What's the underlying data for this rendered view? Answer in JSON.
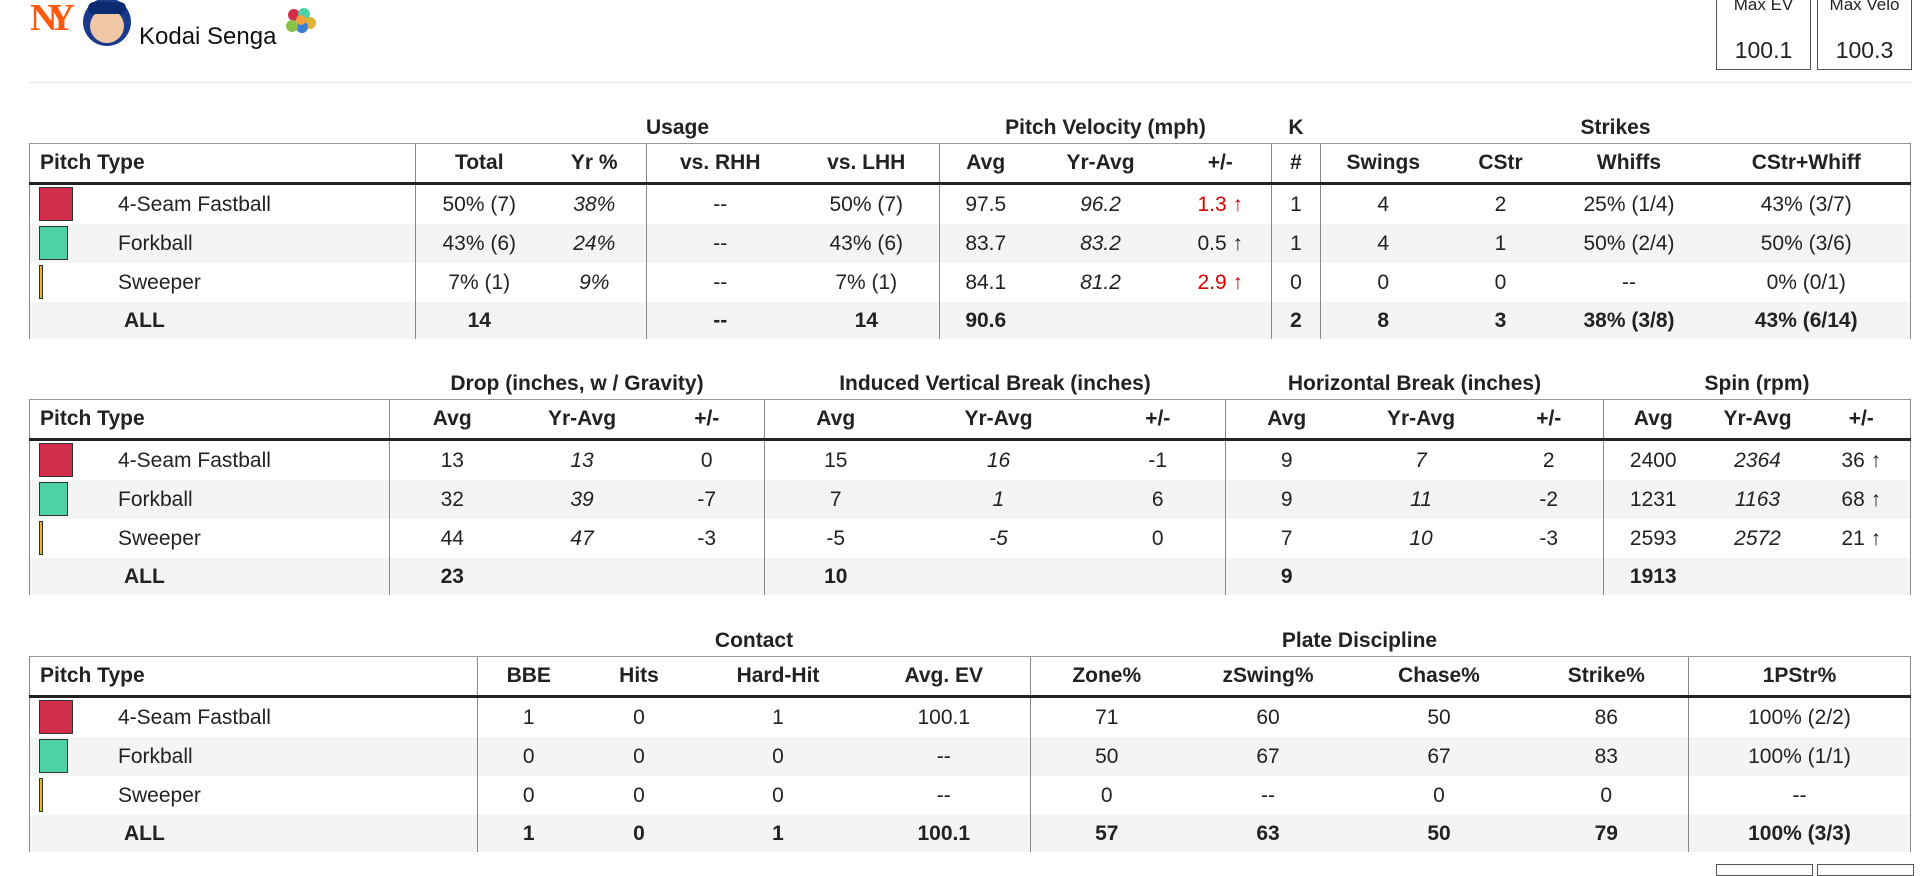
{
  "header": {
    "team": "NY",
    "player": "Kodai Senga",
    "stats": [
      {
        "label": "Max EV",
        "value": "100.1"
      },
      {
        "label": "Max Velo",
        "value": "100.3"
      }
    ]
  },
  "tables": [
    {
      "groups": [
        "Usage",
        "Pitch Velocity (mph)",
        "K",
        "Strikes"
      ],
      "columns": [
        "Pitch Type",
        "Total",
        "Yr %",
        "vs. RHH",
        "vs. LHH",
        "Avg",
        "Yr-Avg",
        "+/-",
        "#",
        "Swings",
        "CStr",
        "Whiffs",
        "CStr+Whiff"
      ],
      "rows": [
        [
          "4-Seam Fastball",
          "50% (7)",
          "38%",
          "--",
          "50% (7)",
          97.5,
          96.2,
          "1.3 ↑",
          1,
          4,
          2,
          "25% (1/4)",
          "43% (3/7)"
        ],
        [
          "Forkball",
          "43% (6)",
          "24%",
          "--",
          "43% (6)",
          83.7,
          83.2,
          "0.5 ↑",
          1,
          4,
          1,
          "50% (2/4)",
          "50% (3/6)"
        ],
        [
          "Sweeper",
          "7% (1)",
          "9%",
          "--",
          "7% (1)",
          84.1,
          81.2,
          "2.9 ↑",
          0,
          0,
          0,
          "--",
          "0% (0/1)"
        ],
        [
          "ALL",
          14,
          null,
          "--",
          14,
          90.6,
          null,
          null,
          2,
          8,
          3,
          "38% (3/8)",
          "43% (6/14)"
        ]
      ]
    },
    {
      "groups": [
        "Drop (inches, w / Gravity)",
        "Induced Vertical Break (inches)",
        "Horizontal Break (inches)",
        "Spin (rpm)"
      ],
      "columns": [
        "Pitch Type",
        "Avg",
        "Yr-Avg",
        "+/-",
        "Avg",
        "Yr-Avg",
        "+/-",
        "Avg",
        "Yr-Avg",
        "+/-",
        "Avg",
        "Yr-Avg",
        "+/-"
      ],
      "rows": [
        [
          "4-Seam Fastball",
          13,
          13,
          0,
          15,
          16,
          -1,
          9,
          7,
          2,
          2400,
          2364,
          "36 ↑"
        ],
        [
          "Forkball",
          32,
          39,
          -7,
          7,
          1,
          6,
          9,
          11,
          -2,
          1231,
          1163,
          "68 ↑"
        ],
        [
          "Sweeper",
          44,
          47,
          -3,
          -5,
          -5,
          0,
          7,
          10,
          -3,
          2593,
          2572,
          "21 ↑"
        ],
        [
          "ALL",
          23,
          null,
          null,
          10,
          null,
          null,
          9,
          null,
          null,
          1913,
          null,
          null
        ]
      ]
    },
    {
      "groups": [
        "Contact",
        "Plate Discipline"
      ],
      "columns": [
        "Pitch Type",
        "BBE",
        "Hits",
        "Hard-Hit",
        "Avg. EV",
        "Zone%",
        "zSwing%",
        "Chase%",
        "Strike%",
        "1PStr%"
      ],
      "rows": [
        [
          "4-Seam Fastball",
          1,
          0,
          1,
          100.1,
          71,
          60,
          50,
          86,
          "100% (2/2)"
        ],
        [
          "Forkball",
          0,
          0,
          0,
          "--",
          50,
          67,
          67,
          83,
          "100% (1/1)"
        ],
        [
          "Sweeper",
          0,
          0,
          0,
          "--",
          0,
          "--",
          0,
          0,
          "--"
        ],
        [
          "ALL",
          1,
          0,
          1,
          100.1,
          57,
          63,
          50,
          79,
          "100% (3/3)"
        ]
      ]
    }
  ]
}
